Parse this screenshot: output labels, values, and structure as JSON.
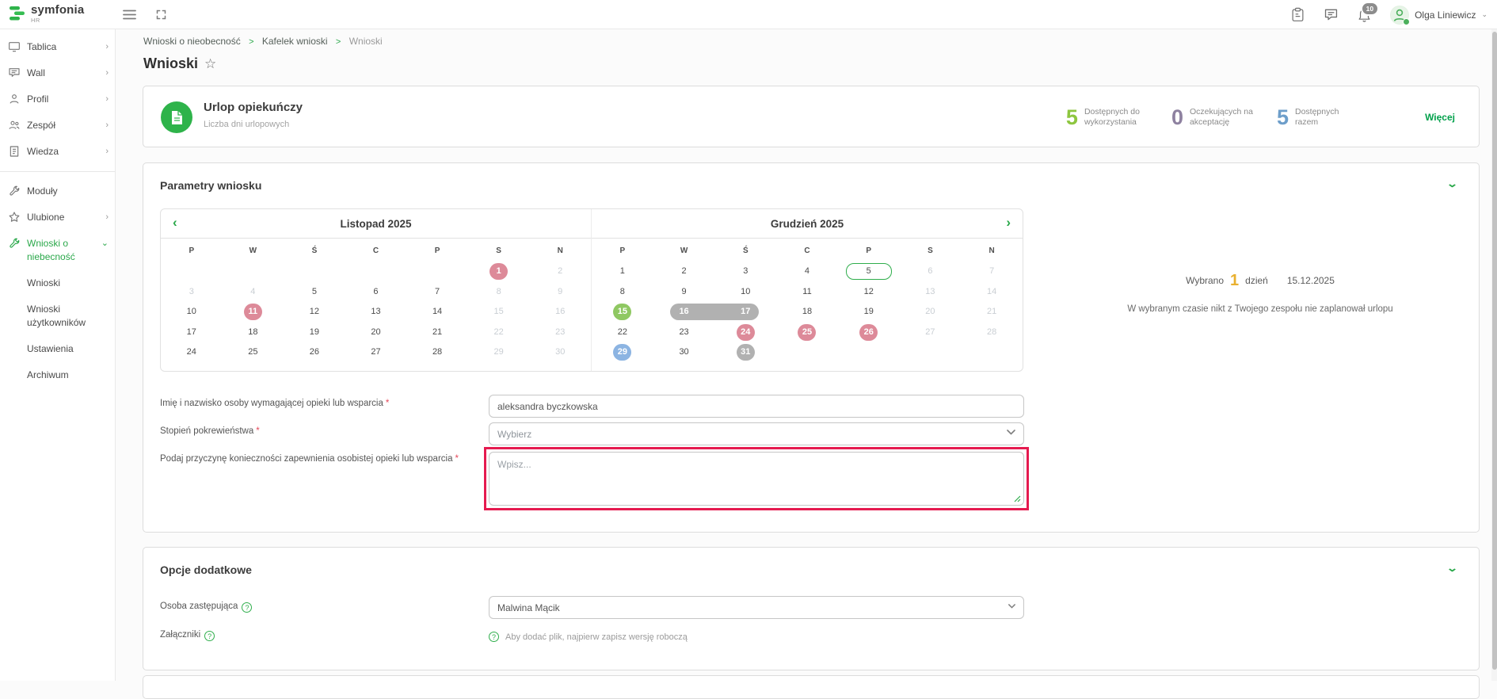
{
  "topbar": {
    "logo_text": "symfonia",
    "logo_sub": "HR",
    "notification_count": "10",
    "user_name": "Olga Liniewicz"
  },
  "sidebar": {
    "main_items": [
      {
        "label": "Tablica",
        "icon": "monitor-icon",
        "chevron": "›"
      },
      {
        "label": "Wall",
        "icon": "wall-icon",
        "chevron": "›"
      },
      {
        "label": "Profil",
        "icon": "profile-icon",
        "chevron": "›"
      },
      {
        "label": "Zespół",
        "icon": "team-icon",
        "chevron": "›"
      },
      {
        "label": "Wiedza",
        "icon": "knowledge-icon",
        "chevron": "›"
      }
    ],
    "secondary_items": [
      {
        "label": "Moduły",
        "icon": "modules-icon",
        "chevron": ""
      },
      {
        "label": "Ulubione",
        "icon": "favorites-icon",
        "chevron": "›"
      }
    ],
    "active_item": {
      "label": "Wnioski o niebecność",
      "icon": "requests-icon",
      "chevron": "⌄"
    },
    "sub_items": [
      "Wnioski",
      "Wnioski użytkowników",
      "Ustawienia",
      "Archiwum"
    ]
  },
  "breadcrumb": {
    "items": [
      "Wnioski o nieobecność",
      "Kafelek wnioski",
      "Wnioski"
    ],
    "separator": ">"
  },
  "page": {
    "title": "Wnioski"
  },
  "summary_card": {
    "title": "Urlop opiekuńczy",
    "subtitle": "Liczba dni urlopowych",
    "stats": [
      {
        "value": "5",
        "label": "Dostępnych do wykorzystania",
        "color": "#8dc63f"
      },
      {
        "value": "0",
        "label": "Oczekujących na akceptację",
        "color": "#8e81a0"
      },
      {
        "value": "5",
        "label": "Dostępnych razem",
        "color": "#6d9eca"
      }
    ],
    "more_label": "Więcej"
  },
  "params_section": {
    "title": "Parametry wniosku",
    "selection": {
      "prefix": "Wybrano",
      "count": "1",
      "unit": "dzień",
      "date": "15.12.2025",
      "note": "W wybranym czasie nikt z Twojego zespołu nie zaplanował urlopu"
    },
    "fields": [
      {
        "label": "Imię i nazwisko osoby wymagającej opieki lub wsparcia",
        "value": "aleksandra byczkowska"
      },
      {
        "label": "Stopień pokrewieństwa",
        "placeholder": "Wybierz"
      },
      {
        "label": "Podaj przyczynę konieczności zapewnienia osobistej opieki lub wsparcia",
        "placeholder": "Wpisz..."
      }
    ]
  },
  "calendar": {
    "months": [
      {
        "name": "Listopad 2025",
        "nav": "prev",
        "weekdays": [
          "P",
          "W",
          "Ś",
          "C",
          "P",
          "S",
          "N"
        ],
        "weeks": [
          [
            null,
            null,
            null,
            null,
            null,
            {
              "d": "1",
              "s": "holiday"
            },
            {
              "d": "2",
              "s": "muted"
            }
          ],
          [
            {
              "d": "3",
              "s": "muted"
            },
            {
              "d": "4",
              "s": "muted"
            },
            {
              "d": "5"
            },
            {
              "d": "6"
            },
            {
              "d": "7"
            },
            {
              "d": "8",
              "s": "muted"
            },
            {
              "d": "9",
              "s": "muted"
            }
          ],
          [
            {
              "d": "10"
            },
            {
              "d": "11",
              "s": "holiday"
            },
            {
              "d": "12"
            },
            {
              "d": "13"
            },
            {
              "d": "14"
            },
            {
              "d": "15",
              "s": "muted"
            },
            {
              "d": "16",
              "s": "muted"
            }
          ],
          [
            {
              "d": "17"
            },
            {
              "d": "18"
            },
            {
              "d": "19"
            },
            {
              "d": "20"
            },
            {
              "d": "21"
            },
            {
              "d": "22",
              "s": "muted"
            },
            {
              "d": "23",
              "s": "muted"
            }
          ],
          [
            {
              "d": "24"
            },
            {
              "d": "25"
            },
            {
              "d": "26"
            },
            {
              "d": "27"
            },
            {
              "d": "28"
            },
            {
              "d": "29",
              "s": "muted"
            },
            {
              "d": "30",
              "s": "muted"
            }
          ]
        ]
      },
      {
        "name": "Grudzień 2025",
        "nav": "next",
        "weekdays": [
          "P",
          "W",
          "Ś",
          "C",
          "P",
          "S",
          "N"
        ],
        "weeks": [
          [
            {
              "d": "1"
            },
            {
              "d": "2"
            },
            {
              "d": "3"
            },
            {
              "d": "4"
            },
            {
              "d": "5",
              "s": "today"
            },
            {
              "d": "6",
              "s": "muted"
            },
            {
              "d": "7",
              "s": "muted"
            }
          ],
          [
            {
              "d": "8"
            },
            {
              "d": "9"
            },
            {
              "d": "10"
            },
            {
              "d": "11"
            },
            {
              "d": "12"
            },
            {
              "d": "13",
              "s": "muted"
            },
            {
              "d": "14",
              "s": "muted"
            }
          ],
          [
            {
              "d": "15",
              "s": "selected"
            },
            {
              "d": "16",
              "s": "range-start"
            },
            {
              "d": "17",
              "s": "range-end"
            },
            {
              "d": "18"
            },
            {
              "d": "19"
            },
            {
              "d": "20",
              "s": "muted"
            },
            {
              "d": "21",
              "s": "muted"
            }
          ],
          [
            {
              "d": "22"
            },
            {
              "d": "23"
            },
            {
              "d": "24",
              "s": "holiday"
            },
            {
              "d": "25",
              "s": "holiday"
            },
            {
              "d": "26",
              "s": "holiday"
            },
            {
              "d": "27",
              "s": "muted"
            },
            {
              "d": "28",
              "s": "muted"
            }
          ],
          [
            {
              "d": "29",
              "s": "info"
            },
            {
              "d": "30"
            },
            {
              "d": "31",
              "s": "gray"
            },
            null,
            null,
            null,
            null
          ]
        ]
      }
    ]
  },
  "options_section": {
    "title": "Opcje dodatkowe",
    "substitute_label": "Osoba zastępująca",
    "substitute_value": "Malwina Mącik",
    "attachments_label": "Załączniki",
    "attachments_note": "Aby dodać plik, najpierw zapisz wersję roboczą",
    "help_glyph": "?"
  }
}
